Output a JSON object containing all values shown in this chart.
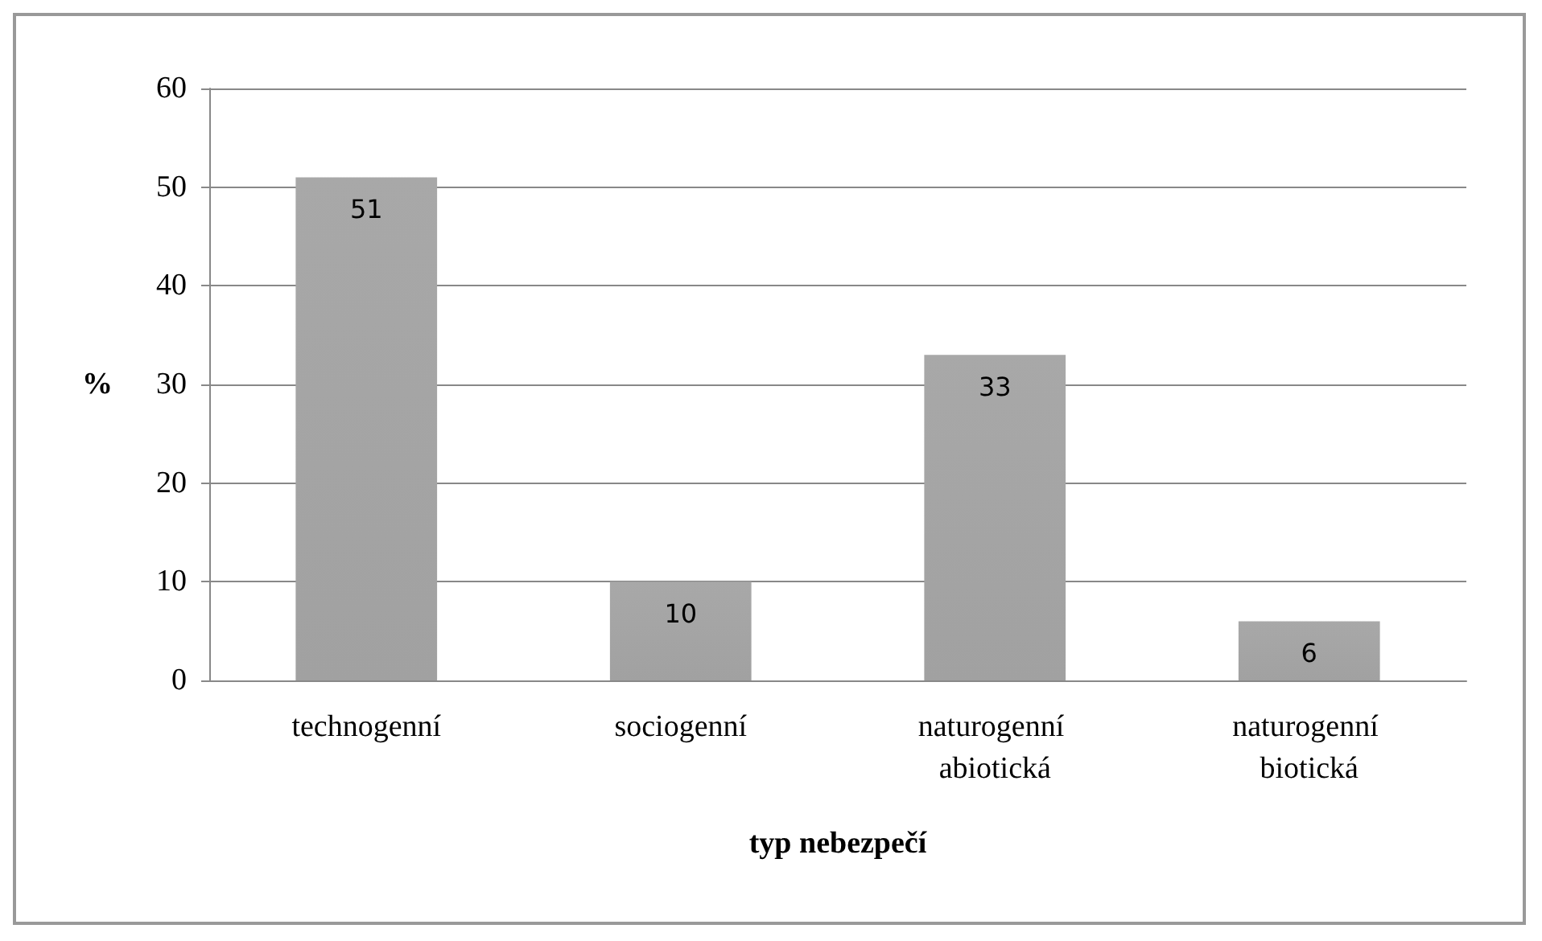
{
  "chart_data": {
    "type": "bar",
    "xlabel": "typ nebezpečí",
    "ylabel": "%",
    "categories": [
      "technogenní",
      "sociogenní",
      "naturogenní abiotická",
      "naturogenní biotická"
    ],
    "values": [
      51,
      10,
      33,
      6
    ],
    "color": "#8c8c8c",
    "ylim": [
      0,
      60
    ],
    "yticks": [
      0,
      10,
      20,
      30,
      40,
      50,
      60
    ],
    "grid": "y",
    "data_labels": true
  }
}
